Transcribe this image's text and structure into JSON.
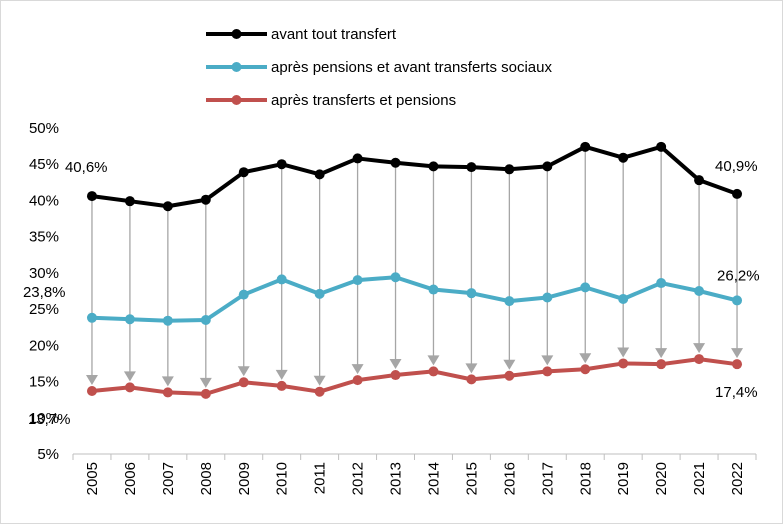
{
  "chart_data": {
    "type": "line",
    "x": [
      "2005",
      "2006",
      "2007",
      "2008",
      "2009",
      "2010",
      "2011",
      "2012",
      "2013",
      "2014",
      "2015",
      "2016",
      "2017",
      "2018",
      "2019",
      "2020",
      "2021",
      "2022"
    ],
    "ylim": [
      5,
      50
    ],
    "yticks": [
      5,
      10,
      15,
      20,
      25,
      30,
      35,
      40,
      45,
      50
    ],
    "ytick_labels": [
      "5%",
      "10%",
      "15%",
      "20%",
      "25%",
      "30%",
      "35%",
      "40%",
      "45%",
      "50%"
    ],
    "grid": false,
    "legend_position": "top-center",
    "series": [
      {
        "name": "avant tout transfert",
        "color": "#000000",
        "values": [
          40.6,
          39.9,
          39.2,
          40.1,
          43.9,
          45.0,
          43.6,
          45.8,
          45.2,
          44.7,
          44.6,
          44.3,
          44.7,
          47.4,
          45.9,
          47.4,
          42.8,
          40.9
        ]
      },
      {
        "name": "après pensions et avant transferts sociaux",
        "color": "#4bacc6",
        "values": [
          23.8,
          23.6,
          23.4,
          23.5,
          27.0,
          29.1,
          27.1,
          29.0,
          29.4,
          27.7,
          27.2,
          26.1,
          26.6,
          28.0,
          26.4,
          28.6,
          27.5,
          26.2
        ]
      },
      {
        "name": "après transferts et pensions",
        "color": "#c0504d",
        "values": [
          13.7,
          14.2,
          13.5,
          13.3,
          14.9,
          14.4,
          13.6,
          15.2,
          15.9,
          16.4,
          15.3,
          15.8,
          16.4,
          16.7,
          17.5,
          17.4,
          18.1,
          17.4
        ]
      }
    ],
    "annotations": [
      {
        "series": 0,
        "index": 0,
        "text": "40,6%"
      },
      {
        "series": 0,
        "index": 17,
        "text": "40,9%"
      },
      {
        "series": 1,
        "index": 0,
        "text": "23,8%"
      },
      {
        "series": 1,
        "index": 17,
        "text": "26,2%"
      },
      {
        "series": 2,
        "index": 0,
        "text": "13,7%"
      },
      {
        "series": 2,
        "index": 17,
        "text": "17,4%"
      }
    ],
    "arrows": {
      "from_series": 0,
      "to_series": 2,
      "line_color": "#a6a6a6",
      "head_color": "#a6a6a6"
    }
  }
}
